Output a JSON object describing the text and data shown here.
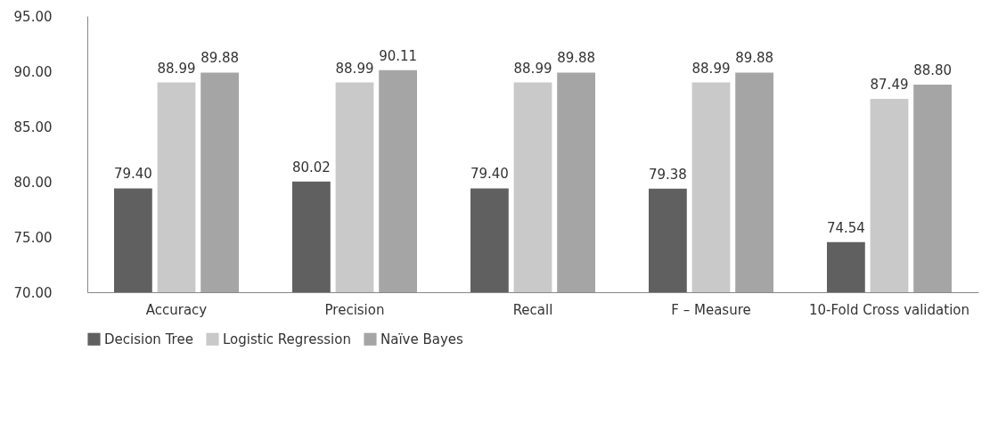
{
  "chart_data": {
    "type": "bar",
    "categories": [
      "Accuracy",
      "Precision",
      "Recall",
      "F – Measure",
      "10-Fold Cross validation"
    ],
    "series": [
      {
        "name": "Decision Tree",
        "color": "#606060",
        "values": [
          79.4,
          80.02,
          79.4,
          79.38,
          74.54
        ],
        "value_labels": [
          "79.40",
          "80.02",
          "79.40",
          "79.38",
          "74.54"
        ]
      },
      {
        "name": "Logistic Regression",
        "color": "#c9c9c9",
        "values": [
          88.99,
          88.99,
          88.99,
          88.99,
          87.49
        ],
        "value_labels": [
          "88.99",
          "88.99",
          "88.99",
          "88.99",
          "87.49"
        ]
      },
      {
        "name": "Naïve Bayes",
        "color": "#a5a5a5",
        "values": [
          89.88,
          90.11,
          89.88,
          89.88,
          88.8
        ],
        "value_labels": [
          "89.88",
          "90.11",
          "89.88",
          "89.88",
          "88.80"
        ]
      }
    ],
    "ylim": [
      70,
      95
    ],
    "yticks": [
      {
        "value": 70,
        "label": "70.00"
      },
      {
        "value": 75,
        "label": "75.00"
      },
      {
        "value": 80,
        "label": "80.00"
      },
      {
        "value": 85,
        "label": "85.00"
      },
      {
        "value": 90,
        "label": "90.00"
      },
      {
        "value": 95,
        "label": "95.00"
      }
    ],
    "grid": false,
    "legend": "bottom"
  }
}
